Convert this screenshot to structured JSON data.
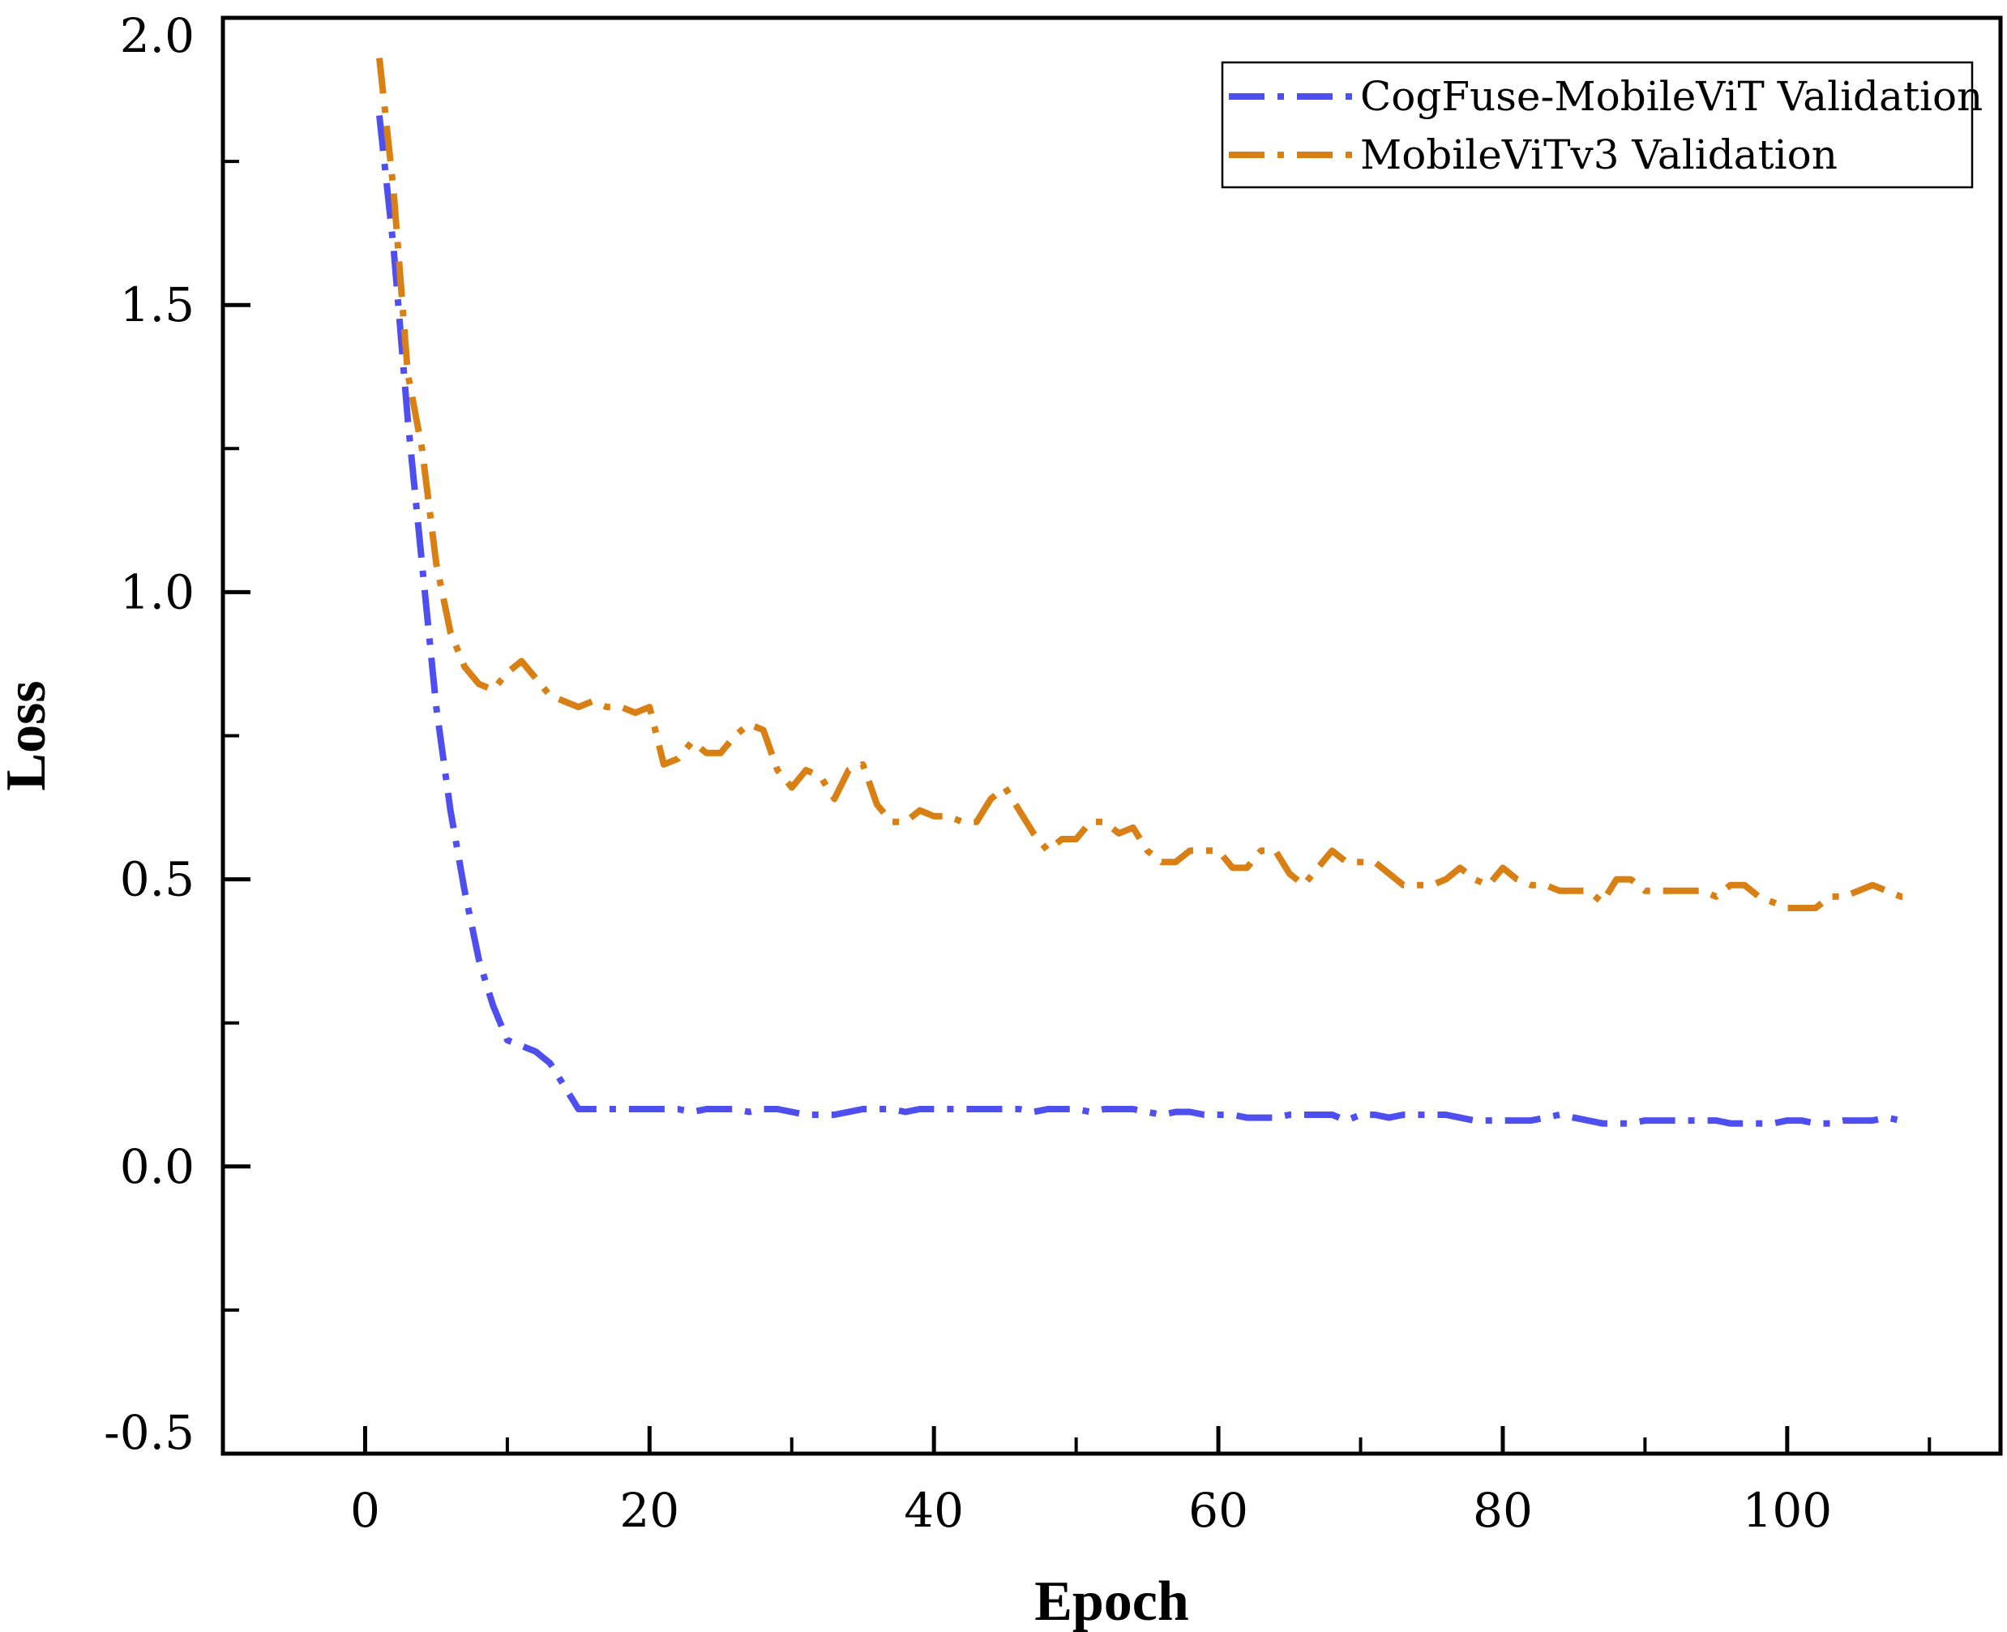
{
  "chart_data": {
    "type": "line",
    "title": "",
    "xlabel": "Epoch",
    "ylabel": "Loss",
    "xlim": [
      -10,
      115
    ],
    "ylim": [
      -0.5,
      2.0
    ],
    "x_major_ticks": [
      0,
      20,
      40,
      60,
      80,
      100
    ],
    "x_tick_labels": [
      "0",
      "20",
      "40",
      "60",
      "80",
      "100"
    ],
    "x_minor_ticks": [
      10,
      30,
      50,
      70,
      90,
      110
    ],
    "y_major_ticks": [
      -0.5,
      0.0,
      0.5,
      1.0,
      1.5,
      2.0
    ],
    "y_tick_labels": [
      "-0.5",
      "0.0",
      "0.5",
      "1.0",
      "1.5",
      "2.0"
    ],
    "y_minor_ticks": [
      -0.25,
      0.25,
      0.75,
      1.25,
      1.75
    ],
    "grid": false,
    "legend_position": "top-right",
    "series": [
      {
        "name": "CogFuse-MobileViT Validation",
        "color": "#4F4FF0",
        "line_style": "dash-dot",
        "x": [
          1,
          2,
          3,
          4,
          5,
          6,
          7,
          8,
          9,
          10,
          11,
          12,
          13,
          14,
          15,
          16,
          17,
          18,
          19,
          20,
          21,
          22,
          23,
          24,
          25,
          26,
          27,
          28,
          29,
          30,
          31,
          32,
          33,
          34,
          35,
          36,
          37,
          38,
          39,
          40,
          41,
          42,
          43,
          44,
          45,
          46,
          47,
          48,
          49,
          50,
          51,
          52,
          53,
          54,
          55,
          56,
          57,
          58,
          59,
          60,
          61,
          62,
          63,
          64,
          65,
          66,
          67,
          68,
          69,
          70,
          71,
          72,
          73,
          74,
          75,
          76,
          77,
          78,
          79,
          80,
          81,
          82,
          83,
          84,
          85,
          86,
          87,
          88,
          89,
          90,
          91,
          92,
          93,
          94,
          95,
          96,
          97,
          98,
          99,
          100,
          101,
          102,
          103,
          104,
          105,
          106,
          107,
          108
        ],
        "y": [
          1.83,
          1.6,
          1.3,
          1.05,
          0.8,
          0.62,
          0.48,
          0.36,
          0.28,
          0.22,
          0.21,
          0.2,
          0.18,
          0.14,
          0.1,
          0.1,
          0.1,
          0.1,
          0.1,
          0.1,
          0.1,
          0.1,
          0.095,
          0.1,
          0.1,
          0.1,
          0.095,
          0.1,
          0.1,
          0.095,
          0.09,
          0.09,
          0.09,
          0.095,
          0.1,
          0.1,
          0.1,
          0.095,
          0.1,
          0.1,
          0.1,
          0.1,
          0.1,
          0.1,
          0.1,
          0.1,
          0.095,
          0.1,
          0.1,
          0.1,
          0.095,
          0.1,
          0.1,
          0.1,
          0.095,
          0.09,
          0.095,
          0.095,
          0.09,
          0.09,
          0.09,
          0.085,
          0.085,
          0.085,
          0.09,
          0.09,
          0.09,
          0.09,
          0.08,
          0.09,
          0.09,
          0.085,
          0.09,
          0.09,
          0.09,
          0.09,
          0.085,
          0.08,
          0.08,
          0.08,
          0.08,
          0.08,
          0.085,
          0.09,
          0.085,
          0.08,
          0.075,
          0.075,
          0.075,
          0.08,
          0.08,
          0.08,
          0.08,
          0.08,
          0.08,
          0.075,
          0.075,
          0.075,
          0.075,
          0.08,
          0.08,
          0.075,
          0.075,
          0.08,
          0.08,
          0.08,
          0.085,
          0.08
        ]
      },
      {
        "name": "MobileViTv3 Validation",
        "color": "#D98014",
        "line_style": "dash-dot",
        "x": [
          1,
          2,
          3,
          4,
          5,
          6,
          7,
          8,
          9,
          10,
          11,
          12,
          13,
          14,
          15,
          16,
          17,
          18,
          19,
          20,
          21,
          22,
          23,
          24,
          25,
          26,
          27,
          28,
          29,
          30,
          31,
          32,
          33,
          34,
          35,
          36,
          37,
          38,
          39,
          40,
          41,
          42,
          43,
          44,
          45,
          46,
          47,
          48,
          49,
          50,
          51,
          52,
          53,
          54,
          55,
          56,
          57,
          58,
          59,
          60,
          61,
          62,
          63,
          64,
          65,
          66,
          67,
          68,
          69,
          70,
          71,
          72,
          73,
          74,
          75,
          76,
          77,
          78,
          79,
          80,
          81,
          82,
          83,
          84,
          85,
          86,
          87,
          88,
          89,
          90,
          91,
          92,
          93,
          94,
          95,
          96,
          97,
          98,
          99,
          100,
          101,
          102,
          103,
          104,
          105,
          106,
          107,
          108,
          109
        ],
        "y": [
          1.93,
          1.7,
          1.38,
          1.25,
          1.05,
          0.93,
          0.87,
          0.84,
          0.83,
          0.86,
          0.88,
          0.85,
          0.82,
          0.81,
          0.8,
          0.81,
          0.8,
          0.8,
          0.79,
          0.8,
          0.7,
          0.71,
          0.74,
          0.72,
          0.72,
          0.75,
          0.77,
          0.76,
          0.69,
          0.66,
          0.69,
          0.68,
          0.64,
          0.69,
          0.7,
          0.63,
          0.6,
          0.6,
          0.62,
          0.61,
          0.61,
          0.6,
          0.6,
          0.64,
          0.66,
          0.62,
          0.58,
          0.55,
          0.57,
          0.57,
          0.6,
          0.6,
          0.58,
          0.59,
          0.55,
          0.53,
          0.53,
          0.55,
          0.55,
          0.55,
          0.52,
          0.52,
          0.55,
          0.55,
          0.51,
          0.49,
          0.52,
          0.55,
          0.53,
          0.53,
          0.53,
          0.51,
          0.49,
          0.49,
          0.49,
          0.5,
          0.52,
          0.5,
          0.49,
          0.52,
          0.5,
          0.49,
          0.49,
          0.48,
          0.48,
          0.48,
          0.46,
          0.5,
          0.5,
          0.48,
          0.48,
          0.48,
          0.48,
          0.48,
          0.47,
          0.49,
          0.49,
          0.47,
          0.46,
          0.45,
          0.45,
          0.45,
          0.47,
          0.47,
          0.48,
          0.49,
          0.48,
          0.47,
          0.47
        ]
      }
    ]
  }
}
